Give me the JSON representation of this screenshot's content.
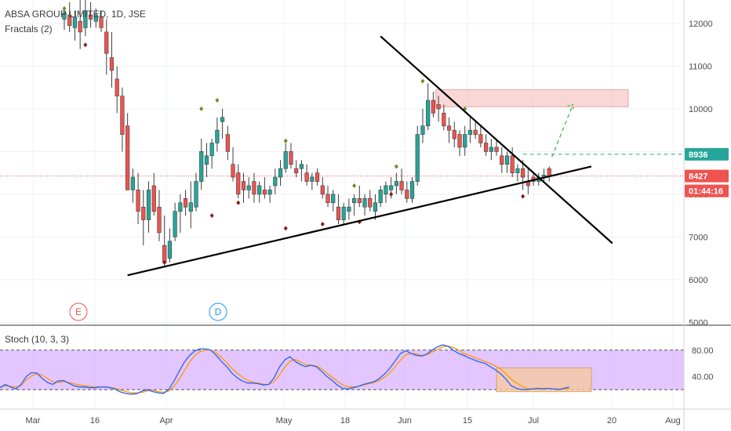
{
  "chart_data": {
    "type": "candlestick",
    "symbol_title": "ABSA GROUP LIMITED, 1D, JSE",
    "indicator": "Fractals (2)",
    "colors": {
      "up": "#26a69a",
      "down": "#ef5350",
      "trendline": "#000000",
      "stoch_k": "#2962ff",
      "stoch_d": "#ff9800",
      "fractal_up": "#6b8e23",
      "fractal_down": "#8b1a1a",
      "resistance_zone": "#f4b6b6",
      "stoch_bg": "#d9b3ff",
      "box": "#f5c99b"
    },
    "price_axis": {
      "ticks": [
        12000,
        11000,
        10000,
        9000,
        8000,
        7000,
        6000,
        5000
      ],
      "ylim": [
        4950,
        12550
      ]
    },
    "x_axis": {
      "ticks": [
        "Mar",
        "16",
        "Apr",
        "May",
        "18",
        "Jun",
        "15",
        "Jul",
        "20",
        "Aug"
      ]
    },
    "price_tags": [
      {
        "label": "8936",
        "value": 8936,
        "color": "#26a69a"
      },
      {
        "label": "8427",
        "value": 8427,
        "color": "#ef5350"
      },
      {
        "label": "01:44:16",
        "value": 8150,
        "color": "#ef5350"
      }
    ],
    "events": [
      {
        "label": "E",
        "color": "#ef5350"
      },
      {
        "label": "D",
        "color": "#2196f3"
      }
    ],
    "candles": [
      [
        12100,
        12400,
        11850,
        12250
      ],
      [
        12200,
        12500,
        11800,
        11950
      ],
      [
        11900,
        12300,
        11600,
        12150
      ],
      [
        12050,
        12600,
        11400,
        11800
      ],
      [
        11900,
        12550,
        11700,
        12300
      ],
      [
        12200,
        12500,
        11900,
        12100
      ],
      [
        12050,
        12350,
        11900,
        12200
      ],
      [
        12150,
        12300,
        11800,
        11900
      ],
      [
        11800,
        12100,
        10800,
        11300
      ],
      [
        11200,
        11800,
        10500,
        10900
      ],
      [
        10700,
        11000,
        9900,
        10300
      ],
      [
        10300,
        10500,
        9000,
        9400
      ],
      [
        9600,
        9900,
        8100,
        8100
      ],
      [
        8100,
        8600,
        7800,
        8400
      ],
      [
        8100,
        8500,
        7300,
        7600
      ],
      [
        7700,
        8100,
        6800,
        7400
      ],
      [
        7400,
        8300,
        7100,
        8100
      ],
      [
        8200,
        8500,
        7500,
        7600
      ],
      [
        7700,
        8100,
        6900,
        7100
      ],
      [
        6800,
        7500,
        6300,
        6400
      ],
      [
        6500,
        7200,
        6400,
        6900
      ],
      [
        7000,
        7800,
        6900,
        7600
      ],
      [
        7600,
        8000,
        7100,
        7800
      ],
      [
        7900,
        8100,
        7500,
        7700
      ],
      [
        7600,
        8300,
        7200,
        7800
      ],
      [
        7700,
        8500,
        7600,
        8300
      ],
      [
        8300,
        9300,
        8100,
        9000
      ],
      [
        8700,
        9200,
        8400,
        8900
      ],
      [
        8900,
        9300,
        8600,
        9200
      ],
      [
        9200,
        9800,
        9000,
        9500
      ],
      [
        9700,
        10000,
        9300,
        9800
      ],
      [
        9400,
        9600,
        8800,
        9000
      ],
      [
        8700,
        9100,
        8300,
        8400
      ],
      [
        8500,
        8700,
        7900,
        8000
      ],
      [
        8300,
        8500,
        7800,
        8100
      ],
      [
        8100,
        8400,
        7900,
        8200
      ],
      [
        8300,
        8500,
        7800,
        8000
      ],
      [
        8000,
        8300,
        7800,
        8200
      ],
      [
        8100,
        8400,
        7900,
        8000
      ],
      [
        8000,
        8200,
        7800,
        8100
      ],
      [
        8200,
        8600,
        8000,
        8400
      ],
      [
        8400,
        8800,
        8200,
        8600
      ],
      [
        8600,
        9200,
        8500,
        9000
      ],
      [
        9000,
        9200,
        8600,
        8700
      ],
      [
        8600,
        8800,
        8400,
        8500
      ],
      [
        8600,
        8800,
        8300,
        8700
      ],
      [
        8500,
        8700,
        8200,
        8300
      ],
      [
        8300,
        8500,
        8100,
        8400
      ],
      [
        8500,
        8600,
        8200,
        8300
      ],
      [
        8200,
        8400,
        7900,
        8000
      ],
      [
        8000,
        8200,
        7700,
        7800
      ],
      [
        7800,
        8100,
        7600,
        8000
      ],
      [
        7700,
        8000,
        7300,
        7400
      ],
      [
        7400,
        7800,
        7300,
        7700
      ],
      [
        7600,
        7900,
        7400,
        7700
      ],
      [
        7800,
        8000,
        7500,
        7900
      ],
      [
        7900,
        8200,
        7700,
        7800
      ],
      [
        7700,
        8000,
        7500,
        7900
      ],
      [
        7900,
        8100,
        7600,
        7700
      ],
      [
        7600,
        8000,
        7400,
        7800
      ],
      [
        7800,
        8200,
        7700,
        8100
      ],
      [
        8000,
        8300,
        7800,
        8200
      ],
      [
        8100,
        8400,
        7900,
        8200
      ],
      [
        8200,
        8500,
        8000,
        8300
      ],
      [
        8300,
        8600,
        8000,
        8100
      ],
      [
        8100,
        8300,
        7800,
        7900
      ],
      [
        7900,
        8400,
        7800,
        8300
      ],
      [
        8300,
        9600,
        8200,
        9400
      ],
      [
        9400,
        10000,
        9200,
        9600
      ],
      [
        9600,
        10600,
        9500,
        10200
      ],
      [
        10200,
        10400,
        9800,
        9900
      ],
      [
        10100,
        10300,
        9700,
        10000
      ],
      [
        9900,
        10100,
        9500,
        9600
      ],
      [
        9600,
        9800,
        9200,
        9500
      ],
      [
        9500,
        9700,
        9100,
        9300
      ],
      [
        9400,
        9500,
        8900,
        9100
      ],
      [
        9100,
        9600,
        8900,
        9400
      ],
      [
        9400,
        9800,
        9200,
        9500
      ],
      [
        9500,
        9700,
        9300,
        9400
      ],
      [
        9400,
        9600,
        9100,
        9200
      ],
      [
        9200,
        9400,
        8900,
        9000
      ],
      [
        9000,
        9300,
        8800,
        9100
      ],
      [
        9100,
        9300,
        8900,
        9000
      ],
      [
        8900,
        9100,
        8500,
        8700
      ],
      [
        8700,
        9000,
        8500,
        8900
      ],
      [
        8900,
        9100,
        8400,
        8500
      ],
      [
        8500,
        8700,
        8300,
        8600
      ],
      [
        8600,
        8800,
        8100,
        8400
      ],
      [
        8300,
        8600,
        8000,
        8200
      ],
      [
        8400,
        8500,
        8200,
        8300
      ],
      [
        8300,
        8500,
        8200,
        8400
      ],
      [
        8400,
        8600,
        8300,
        8450
      ],
      [
        8600,
        8650,
        8300,
        8427
      ]
    ],
    "fractals_up": [
      [
        0,
        12350
      ],
      [
        26,
        10000
      ],
      [
        29,
        10200
      ],
      [
        42,
        9250
      ],
      [
        55,
        8200
      ],
      [
        63,
        8650
      ],
      [
        68,
        10650
      ],
      [
        76,
        10000
      ]
    ],
    "fractals_down": [
      [
        4,
        11500
      ],
      [
        19,
        6400
      ],
      [
        28,
        7500
      ],
      [
        33,
        7800
      ],
      [
        42,
        7200
      ],
      [
        49,
        7300
      ],
      [
        56,
        7350
      ],
      [
        62,
        8000
      ],
      [
        87,
        7950
      ]
    ],
    "resistance_zone": {
      "y_low": 10050,
      "y_high": 10450,
      "x_start": 70.5,
      "x_end": 107
    },
    "trendlines": [
      {
        "x1": 12,
        "y1": 6100,
        "x2": 100,
        "y2": 8650
      },
      {
        "x1": 60,
        "y1": 11700,
        "x2": 104,
        "y2": 6850
      }
    ],
    "projection": {
      "x1": 92.5,
      "y1": 8870,
      "x2": 96.5,
      "y2": 10100
    },
    "target_level": {
      "value": 8936,
      "x_start": 87
    },
    "last_price_line": 8427,
    "stoch": {
      "title": "Stoch (10, 3, 3)",
      "ticks": [
        80.0,
        40.0
      ],
      "ylim": [
        0,
        100
      ],
      "band": [
        20,
        80
      ],
      "k": [
        23,
        28,
        24,
        21,
        28,
        40,
        46,
        45,
        37,
        31,
        28,
        33,
        34,
        30,
        26,
        24,
        24,
        23,
        23,
        24,
        24,
        23,
        20,
        16,
        14,
        13,
        14,
        18,
        20,
        17,
        15,
        14,
        20,
        33,
        48,
        62,
        72,
        79,
        82,
        82,
        80,
        72,
        63,
        55,
        45,
        38,
        33,
        30,
        30,
        29,
        27,
        28,
        38,
        54,
        65,
        70,
        63,
        58,
        55,
        57,
        55,
        48,
        40,
        34,
        27,
        22,
        21,
        23,
        25,
        28,
        30,
        32,
        37,
        44,
        53,
        64,
        75,
        79,
        75,
        72,
        71,
        74,
        80,
        85,
        88,
        86,
        80,
        75,
        72,
        68,
        65,
        62,
        60,
        55,
        50,
        44,
        36,
        26,
        22,
        20
      ],
      "d": [
        23,
        26,
        25,
        24,
        26,
        35,
        41,
        44,
        42,
        37,
        32,
        31,
        32,
        31,
        29,
        27,
        26,
        25,
        24,
        24,
        24,
        23,
        22,
        19,
        17,
        15,
        15,
        16,
        18,
        19,
        17,
        16,
        18,
        25,
        36,
        49,
        62,
        72,
        78,
        80,
        80,
        76,
        69,
        61,
        52,
        45,
        39,
        34,
        31,
        30,
        28,
        28,
        32,
        42,
        54,
        63,
        66,
        62,
        58,
        57,
        56,
        52,
        45,
        39,
        33,
        27,
        24,
        24,
        25,
        27,
        29,
        31,
        34,
        39,
        46,
        55,
        65,
        73,
        75,
        74,
        72,
        73,
        77,
        81,
        85,
        86,
        84,
        80,
        75,
        72,
        69,
        66,
        63,
        60,
        56,
        51,
        44,
        36,
        30,
        25
      ],
      "k_tail": [
        20,
        21,
        22,
        21,
        22,
        21,
        20,
        22,
        24
      ],
      "d_tail": [
        22,
        21,
        21,
        22,
        22,
        21,
        21,
        21,
        22
      ],
      "box": {
        "x_start": 82,
        "x_end": 100,
        "y_low": 17,
        "y_high": 53
      }
    }
  }
}
